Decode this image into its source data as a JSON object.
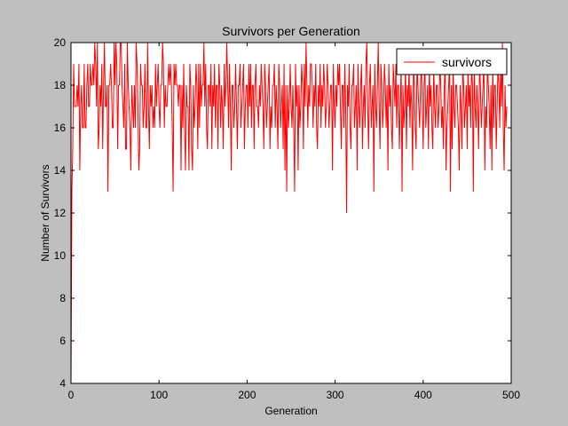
{
  "chart_data": {
    "type": "line",
    "title": "Survivors per Generation",
    "xlabel": "Generation",
    "ylabel": "Number of Survivors",
    "xlim": [
      0,
      500
    ],
    "ylim": [
      4,
      20
    ],
    "xticks": [
      0,
      100,
      200,
      300,
      400,
      500
    ],
    "yticks": [
      4,
      6,
      8,
      10,
      12,
      14,
      16,
      18,
      20
    ],
    "grid": false,
    "legend": {
      "position": "top-right",
      "entries": [
        "survivors"
      ]
    },
    "series": [
      {
        "name": "survivors",
        "color": "#ff0000",
        "x_start": 0,
        "x_step": 1,
        "values": [
          4,
          13,
          15,
          19,
          17,
          17,
          17,
          18,
          17,
          19,
          14,
          17,
          18,
          16,
          16,
          19,
          16,
          16,
          18,
          19,
          17,
          17,
          19,
          18,
          18,
          19,
          18,
          20,
          19,
          17,
          20,
          15,
          16,
          18,
          17,
          19,
          15,
          18,
          20,
          17,
          17,
          18,
          13,
          18,
          18,
          19,
          18,
          16,
          16,
          20,
          18,
          20,
          19,
          15,
          18,
          18,
          20,
          20,
          18,
          17,
          16,
          19,
          15,
          15,
          20,
          18,
          17,
          16,
          14,
          18,
          17,
          16,
          18,
          16,
          20,
          19,
          17,
          14,
          15,
          19,
          18,
          18,
          16,
          17,
          19,
          16,
          16,
          20,
          17,
          15,
          18,
          17,
          18,
          16,
          17,
          16,
          19,
          17,
          18,
          19,
          17,
          16,
          18,
          18,
          20,
          19,
          16,
          18,
          17,
          17,
          18,
          19,
          18,
          19,
          18,
          16,
          13,
          19,
          18,
          19,
          18,
          18,
          17,
          18,
          18,
          14,
          18,
          16,
          19,
          16,
          14,
          18,
          17,
          17,
          14,
          19,
          18,
          15,
          14,
          18,
          16,
          17,
          19,
          18,
          15,
          19,
          16,
          19,
          17,
          18,
          18,
          20,
          17,
          19,
          16,
          15,
          18,
          18,
          17,
          19,
          15,
          18,
          17,
          19,
          16,
          18,
          18,
          15,
          19,
          18,
          16,
          18,
          17,
          15,
          19,
          17,
          18,
          20,
          18,
          16,
          19,
          17,
          14,
          18,
          18,
          16,
          17,
          19,
          17,
          15,
          18,
          18,
          19,
          16,
          17,
          18,
          19,
          15,
          17,
          18,
          18,
          16,
          19,
          17,
          19,
          16,
          18,
          18,
          15,
          18,
          19,
          17,
          17,
          16,
          18,
          17,
          19,
          18,
          17,
          15,
          19,
          18,
          16,
          17,
          18,
          19,
          15,
          17,
          16,
          18,
          18,
          19,
          16,
          18,
          17,
          15,
          19,
          18,
          16,
          17,
          18,
          15,
          19,
          14,
          18,
          13,
          18,
          16,
          17,
          19,
          17,
          16,
          18,
          16,
          13,
          19,
          17,
          18,
          14,
          18,
          16,
          17,
          19,
          18,
          15,
          19,
          17,
          20,
          18,
          16,
          18,
          17,
          19,
          19,
          18,
          16,
          18,
          17,
          19,
          16,
          15,
          18,
          17,
          19,
          16,
          18,
          17,
          19,
          18,
          16,
          17,
          19,
          18,
          16,
          17,
          18,
          18,
          14,
          19,
          17,
          16,
          18,
          17,
          19,
          18,
          19,
          17,
          15,
          18,
          18,
          16,
          19,
          17,
          12,
          18,
          17,
          19,
          16,
          15,
          18,
          18,
          19,
          16,
          17,
          18,
          14,
          19,
          17,
          16,
          18,
          19,
          15,
          17,
          18,
          16,
          19,
          20,
          17,
          15,
          18,
          19,
          16,
          17,
          18,
          13,
          19,
          17,
          16,
          18,
          20,
          17,
          15,
          19,
          18,
          16,
          17,
          19,
          18,
          16,
          18,
          14,
          19,
          17,
          18,
          16,
          15,
          19,
          18,
          17,
          19,
          16,
          18,
          18,
          15,
          17,
          19,
          13,
          18,
          16,
          17,
          19,
          15,
          18,
          17,
          19,
          16,
          18,
          17,
          14,
          19,
          18,
          16,
          15,
          19,
          18,
          17,
          16,
          18,
          19,
          17,
          15,
          18,
          19,
          16,
          17,
          18,
          15,
          19,
          17,
          18,
          16,
          15,
          19,
          17,
          16,
          18,
          18,
          16,
          17,
          19,
          18,
          16,
          17,
          15,
          18,
          19,
          14,
          16,
          17,
          18,
          19,
          13,
          18,
          15,
          19,
          17,
          16,
          18,
          18,
          17,
          16,
          14,
          18,
          17,
          15,
          19,
          18,
          16,
          17,
          18,
          15,
          19,
          17,
          18,
          16,
          19,
          18,
          13,
          19,
          17,
          16,
          18,
          17,
          15,
          19,
          18,
          16,
          17,
          18,
          19,
          14,
          17,
          16,
          19,
          18,
          17,
          15,
          18,
          14,
          19,
          16,
          18,
          18,
          15,
          17,
          19,
          18,
          16,
          19,
          17,
          20,
          16,
          14,
          18,
          16,
          17
        ]
      }
    ]
  }
}
